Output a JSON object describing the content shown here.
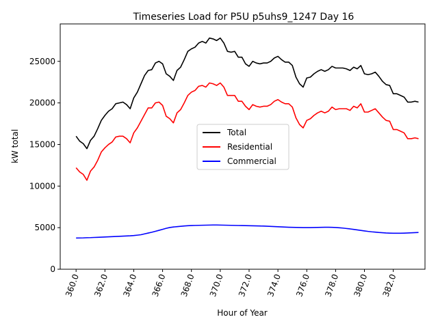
{
  "chart_data": {
    "type": "line",
    "title": "Timeseries Load for P5U p5uhs9_1247  Day 16",
    "xlabel": "Hour of Year",
    "ylabel": "kW total",
    "xlim": [
      358.9,
      384.2
    ],
    "ylim": [
      0,
      29500
    ],
    "x_ticks": [
      360,
      362,
      364,
      366,
      368,
      370,
      372,
      374,
      376,
      378,
      380,
      382
    ],
    "x_tick_labels": [
      "360.0",
      "362.0",
      "364.0",
      "366.0",
      "368.0",
      "370.0",
      "372.0",
      "374.0",
      "376.0",
      "378.0",
      "380.0",
      "382.0"
    ],
    "y_ticks": [
      0,
      5000,
      10000,
      15000,
      20000,
      25000
    ],
    "y_tick_labels": [
      "0",
      "5000",
      "10000",
      "15000",
      "20000",
      "25000"
    ],
    "legend_position": "center",
    "x_start": 360.0,
    "x_step": 0.25,
    "series": [
      {
        "name": "Total",
        "color": "#000000",
        "values": [
          16000,
          15400,
          15100,
          14500,
          15500,
          16000,
          16900,
          17900,
          18500,
          19000,
          19300,
          19900,
          20000,
          20100,
          19800,
          19300,
          20600,
          21300,
          22300,
          23300,
          23900,
          24000,
          24800,
          25000,
          24700,
          23500,
          23200,
          22700,
          23900,
          24300,
          25200,
          26200,
          26500,
          26700,
          27200,
          27400,
          27200,
          27800,
          27700,
          27500,
          27800,
          27200,
          26200,
          26100,
          26200,
          25500,
          25500,
          24700,
          24400,
          25000,
          24800,
          24700,
          24800,
          24800,
          25000,
          25400,
          25600,
          25200,
          24900,
          24900,
          24500,
          23100,
          22300,
          21900,
          23000,
          23100,
          23500,
          23800,
          24000,
          23800,
          24000,
          24400,
          24200,
          24200,
          24200,
          24100,
          23900,
          24300,
          24100,
          24500,
          23500,
          23400,
          23500,
          23700,
          23200,
          22600,
          22200,
          22100,
          21100,
          21100,
          20900,
          20700,
          20100,
          20100,
          20200,
          20100
        ]
      },
      {
        "name": "Residential",
        "color": "#ff0000",
        "values": [
          12200,
          11700,
          11400,
          10700,
          11800,
          12300,
          13100,
          14100,
          14600,
          15000,
          15300,
          15900,
          16000,
          16000,
          15700,
          15200,
          16400,
          17000,
          17800,
          18600,
          19400,
          19400,
          20000,
          20100,
          19700,
          18400,
          18100,
          17600,
          18800,
          19200,
          20000,
          20900,
          21300,
          21500,
          22000,
          22100,
          21900,
          22400,
          22300,
          22100,
          22400,
          21900,
          20900,
          20900,
          20900,
          20200,
          20200,
          19600,
          19200,
          19800,
          19600,
          19500,
          19600,
          19600,
          19800,
          20200,
          20400,
          20100,
          19900,
          19900,
          19500,
          18200,
          17400,
          17000,
          17900,
          18100,
          18500,
          18800,
          19000,
          18800,
          19000,
          19500,
          19200,
          19300,
          19300,
          19300,
          19100,
          19600,
          19400,
          19900,
          18900,
          18900,
          19100,
          19300,
          18800,
          18300,
          17900,
          17800,
          16800,
          16800,
          16600,
          16400,
          15700,
          15700,
          15800,
          15700
        ]
      },
      {
        "name": "Commercial",
        "color": "#0000ff",
        "values": [
          3750,
          3760,
          3770,
          3790,
          3800,
          3820,
          3840,
          3860,
          3880,
          3900,
          3920,
          3940,
          3960,
          3980,
          4000,
          4020,
          4050,
          4100,
          4150,
          4250,
          4350,
          4450,
          4560,
          4680,
          4800,
          4920,
          5020,
          5080,
          5120,
          5160,
          5200,
          5230,
          5250,
          5270,
          5280,
          5290,
          5300,
          5310,
          5320,
          5320,
          5310,
          5300,
          5290,
          5280,
          5270,
          5260,
          5250,
          5240,
          5230,
          5220,
          5210,
          5200,
          5190,
          5170,
          5150,
          5130,
          5110,
          5090,
          5070,
          5050,
          5040,
          5030,
          5020,
          5010,
          5010,
          5010,
          5020,
          5030,
          5040,
          5050,
          5050,
          5040,
          5020,
          4990,
          4950,
          4900,
          4850,
          4790,
          4730,
          4670,
          4610,
          4550,
          4500,
          4460,
          4420,
          4390,
          4360,
          4340,
          4330,
          4330,
          4330,
          4340,
          4360,
          4380,
          4400,
          4420
        ]
      }
    ]
  }
}
